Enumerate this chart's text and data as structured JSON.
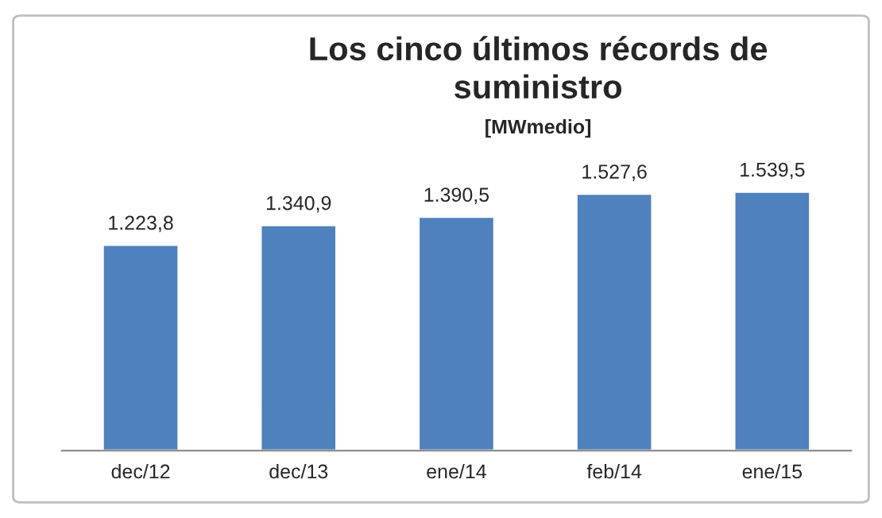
{
  "chart_data": {
    "type": "bar",
    "title": "Los cinco últimos récords de\nsuministro",
    "subtitle": "[MWmedio]",
    "categories": [
      "dec/12",
      "dec/13",
      "ene/14",
      "feb/14",
      "ene/15"
    ],
    "values": [
      1223.8,
      1340.9,
      1390.5,
      1527.6,
      1539.5
    ],
    "value_labels": [
      "1.223,8",
      "1.340,9",
      "1.390,5",
      "1.527,6",
      "1.539,5"
    ],
    "color": "#4f81bd",
    "grid": false,
    "legend": false
  }
}
